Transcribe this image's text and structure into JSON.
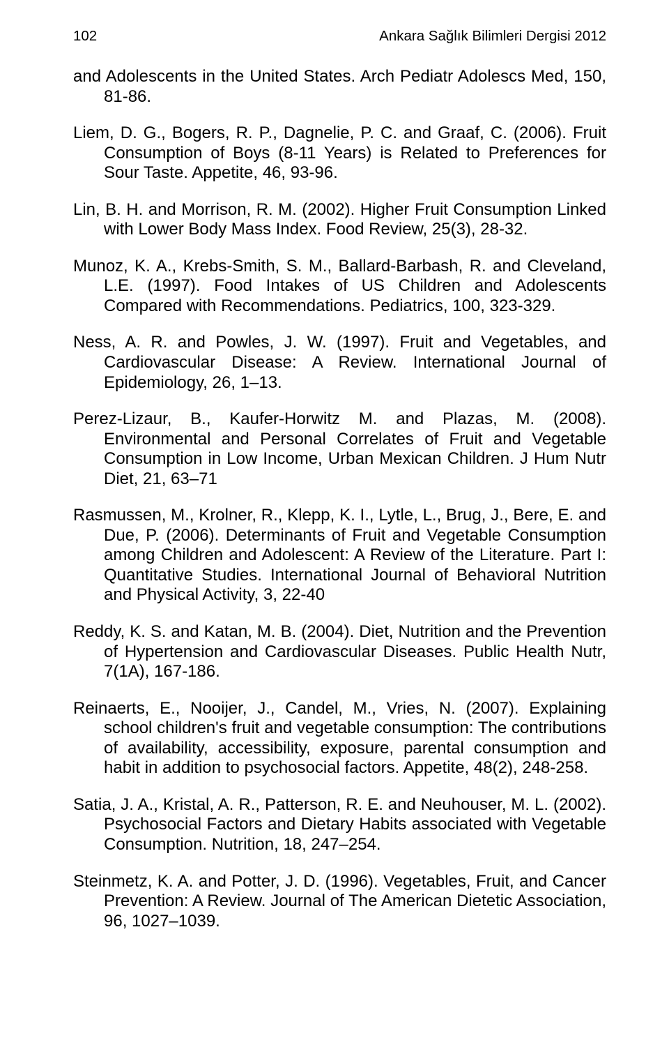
{
  "header": {
    "page_number": "102",
    "journal": "Ankara Sağlık Bilimleri Dergisi 2012"
  },
  "references": [
    "and Adolescents in the United States. Arch Pediatr Adolescs Med, 150, 81-86.",
    "Liem, D. G., Bogers, R. P., Dagnelie, P. C. and Graaf, C. (2006). Fruit Consumption of Boys (8-11 Years) is Related to Preferences for Sour Taste. Appetite, 46, 93-96.",
    "Lin, B. H. and Morrison, R. M. (2002). Higher Fruit Consumption Linked with Lower Body Mass Index. Food Review, 25(3), 28-32.",
    "Munoz, K. A., Krebs-Smith, S. M., Ballard-Barbash, R. and Cleveland, L.E. (1997). Food Intakes of US Children and Adolescents Compared with Recommendations. Pediatrics, 100, 323-329.",
    "Ness, A. R. and Powles, J. W. (1997). Fruit and Vegetables, and Cardiovascular Disease: A Review. International Journal of Epidemiology, 26, 1–13.",
    "Perez-Lizaur, B., Kaufer-Horwitz M. and Plazas, M. (2008). Environmental and Personal Correlates of Fruit and Vegetable Consumption in Low Income, Urban Mexican Children.  J Hum Nutr Diet, 21, 63–71",
    "Rasmussen, M., Krolner, R., Klepp, K. I., Lytle, L., Brug, J., Bere, E. and Due, P. (2006). Determinants of Fruit and Vegetable Consumption among Children and Adolescent: A Review of the Literature. Part I: Quantitative Studies. International Journal of Behavioral Nutrition and Physical Activity, 3, 22-40",
    "Reddy, K. S. and Katan, M. B. (2004). Diet, Nutrition and the Prevention of Hypertension and Cardiovascular Diseases. Public Health Nutr, 7(1A), 167-186.",
    "Reinaerts, E., Nooijer, J., Candel, M., Vries, N. (2007). Explaining school children's fruit and vegetable consumption: The contributions of availability, accessibility, exposure, parental consumption and habit in addition to psychosocial factors. Appetite, 48(2), 248-258.",
    "Satia, J. A., Kristal, A. R., Patterson, R. E. and Neuhouser, M. L. (2002). Psychosocial Factors and Dietary Habits associated with Vegetable Consumption. Nutrition, 18, 247–254.",
    "Steinmetz, K. A. and Potter, J. D. (1996). Vegetables, Fruit, and Cancer Prevention: A Review. Journal of The American Dietetic Association, 96, 1027–1039."
  ]
}
